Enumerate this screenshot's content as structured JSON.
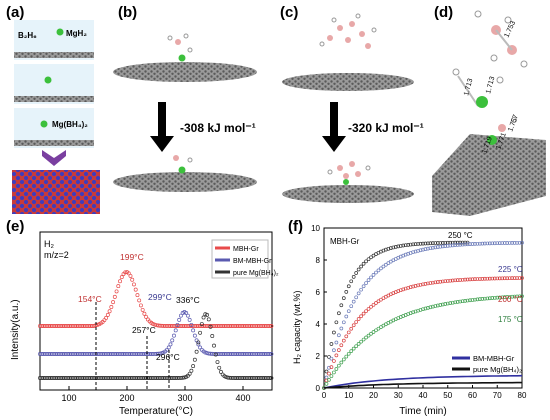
{
  "panels": {
    "a": {
      "letter": "(a)",
      "labels": [
        "B₂H₆",
        "MgH₂",
        "Mg(BH₄)₂"
      ]
    },
    "b": {
      "letter": "(b)",
      "energy": "-308 kJ mol⁻¹"
    },
    "c": {
      "letter": "(c)",
      "energy": "-320 kJ mol⁻¹"
    },
    "d": {
      "letter": "(d)",
      "bond_labels": [
        "1.753",
        "1.713",
        "1.713",
        "1.757",
        "1.719",
        "1.771"
      ]
    }
  },
  "chart_data": [
    {
      "panel": "(e)",
      "type": "line",
      "gas_label": "H₂",
      "mz_label": "m/z=2",
      "xlabel": "Temperature(°C)",
      "ylabel": "Intensity(a.u.)",
      "xlim": [
        50,
        450
      ],
      "xticks": [
        100,
        200,
        300,
        400
      ],
      "series": [
        {
          "name": "MBH-Gr",
          "color": "#e84a4a",
          "peak_label": "199°C",
          "onset_label": "154°C"
        },
        {
          "name": "BM-MBH-Gr",
          "color": "#5a5ab0",
          "peak_label": "299°C",
          "onset_label": "257°C"
        },
        {
          "name": "pure Mg(BH₄)₂",
          "color": "#333333",
          "peak_label": "336°C",
          "onset_label": "296°C"
        }
      ]
    },
    {
      "panel": "(f)",
      "type": "scatter",
      "inset_label": "MBH-Gr",
      "xlabel": "Time (min)",
      "ylabel": "H₂ capacity (wt.%)",
      "xlim": [
        0,
        80
      ],
      "ylim": [
        0,
        10
      ],
      "xticks": [
        0,
        10,
        20,
        30,
        40,
        50,
        60,
        70,
        80
      ],
      "yticks": [
        0,
        2,
        4,
        6,
        8,
        10
      ],
      "series": [
        {
          "name": "250 °C",
          "color": "#333333",
          "final": 9.1,
          "rate": 0.12,
          "t_end": 58
        },
        {
          "name": "225 °C",
          "color": "#6a7ab8",
          "final": 9.1,
          "rate": 0.075,
          "t_end": 80
        },
        {
          "name": "200 °C",
          "color": "#d84040",
          "final": 6.9,
          "rate": 0.07,
          "t_end": 80
        },
        {
          "name": "175 °C",
          "color": "#40a050",
          "final": 5.9,
          "rate": 0.045,
          "t_end": 80
        }
      ],
      "legend": [
        {
          "name": "BM-MBH-Gr",
          "color": "#3030a0",
          "final": 0.8
        },
        {
          "name": "pure Mg(BH₄)₂",
          "color": "#111111",
          "final": 0.35
        }
      ]
    }
  ]
}
